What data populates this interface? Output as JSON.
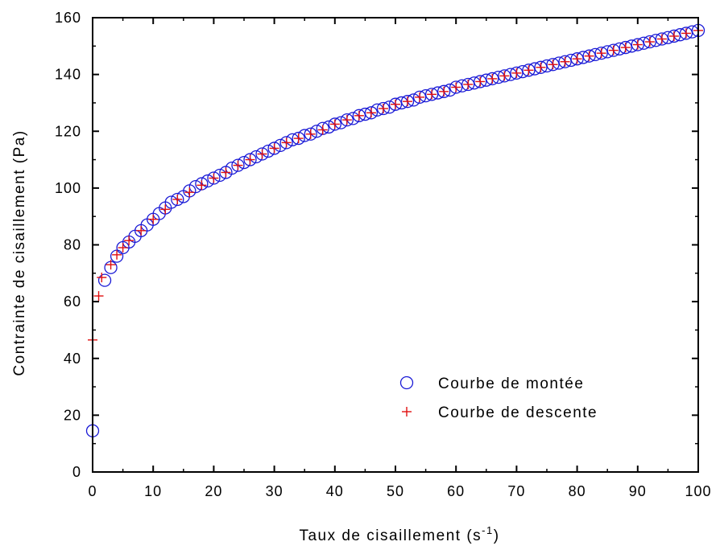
{
  "chart_data": {
    "type": "scatter",
    "title": "",
    "xlabel": "Taux de cisaillement (s",
    "xlabel_sup": "-1",
    "xlabel_end": ")",
    "ylabel": "Contrainte de cisaillement (Pa)",
    "xlim": [
      0,
      100
    ],
    "ylim": [
      0,
      160
    ],
    "x_ticks": [
      "0",
      "10",
      "20",
      "30",
      "40",
      "50",
      "60",
      "70",
      "80",
      "90",
      "100"
    ],
    "y_ticks": [
      "0",
      "20",
      "40",
      "60",
      "80",
      "100",
      "120",
      "140",
      "160"
    ],
    "grid": false,
    "legend_position": "bottom-right",
    "series": [
      {
        "name": "Courbe de montée",
        "marker": "circle-open",
        "color": "#1a1ad6",
        "points": [
          [
            0,
            14.5
          ],
          [
            2,
            67.5
          ],
          [
            3,
            72
          ],
          [
            4,
            76
          ],
          [
            5,
            79
          ],
          [
            6,
            81
          ],
          [
            7,
            83
          ],
          [
            8,
            85
          ],
          [
            9,
            87
          ],
          [
            10,
            89
          ],
          [
            11,
            91
          ],
          [
            12,
            93
          ],
          [
            13,
            95
          ],
          [
            14,
            96
          ],
          [
            15,
            97
          ],
          [
            16,
            99
          ],
          [
            17,
            100.5
          ],
          [
            18,
            101.5
          ],
          [
            19,
            102.5
          ],
          [
            20,
            103.5
          ],
          [
            21,
            104.5
          ],
          [
            22,
            105.5
          ],
          [
            23,
            107
          ],
          [
            24,
            108
          ],
          [
            25,
            109
          ],
          [
            26,
            110
          ],
          [
            27,
            111
          ],
          [
            28,
            112
          ],
          [
            29,
            113
          ],
          [
            30,
            114
          ],
          [
            31,
            115
          ],
          [
            32,
            116
          ],
          [
            33,
            117
          ],
          [
            34,
            117.5
          ],
          [
            35,
            118.5
          ],
          [
            36,
            119
          ],
          [
            37,
            120
          ],
          [
            38,
            121
          ],
          [
            39,
            121.5
          ],
          [
            40,
            122.5
          ],
          [
            41,
            123
          ],
          [
            42,
            124
          ],
          [
            43,
            124.5
          ],
          [
            44,
            125.5
          ],
          [
            45,
            126
          ],
          [
            46,
            126.5
          ],
          [
            47,
            127.5
          ],
          [
            48,
            128
          ],
          [
            49,
            128.5
          ],
          [
            50,
            129.5
          ],
          [
            51,
            130
          ],
          [
            52,
            130.5
          ],
          [
            53,
            131
          ],
          [
            54,
            132
          ],
          [
            55,
            132.5
          ],
          [
            56,
            133
          ],
          [
            57,
            133.5
          ],
          [
            58,
            134
          ],
          [
            59,
            134.5
          ],
          [
            60,
            135.5
          ],
          [
            61,
            136
          ],
          [
            62,
            136.5
          ],
          [
            63,
            137
          ],
          [
            64,
            137.5
          ],
          [
            65,
            138
          ],
          [
            66,
            138.5
          ],
          [
            67,
            139
          ],
          [
            68,
            139.5
          ],
          [
            69,
            140
          ],
          [
            70,
            140.5
          ],
          [
            71,
            141
          ],
          [
            72,
            141.5
          ],
          [
            73,
            142
          ],
          [
            74,
            142.5
          ],
          [
            75,
            143
          ],
          [
            76,
            143.5
          ],
          [
            77,
            144
          ],
          [
            78,
            144.5
          ],
          [
            79,
            145
          ],
          [
            80,
            145.5
          ],
          [
            81,
            146
          ],
          [
            82,
            146.5
          ],
          [
            83,
            147
          ],
          [
            84,
            147.5
          ],
          [
            85,
            148
          ],
          [
            86,
            148.5
          ],
          [
            87,
            149
          ],
          [
            88,
            149.5
          ],
          [
            89,
            150
          ],
          [
            90,
            150.5
          ],
          [
            91,
            151
          ],
          [
            92,
            151.5
          ],
          [
            93,
            152
          ],
          [
            94,
            152.5
          ],
          [
            95,
            153
          ],
          [
            96,
            153.5
          ],
          [
            97,
            154
          ],
          [
            98,
            154.5
          ],
          [
            99,
            155
          ],
          [
            100,
            155.5
          ]
        ]
      },
      {
        "name": "Courbe de descente",
        "marker": "plus",
        "color": "#e01010",
        "points": [
          [
            0,
            46.5
          ],
          [
            1,
            62
          ],
          [
            1.5,
            68.5
          ],
          [
            3,
            73
          ],
          [
            4,
            76.5
          ],
          [
            5,
            79
          ],
          [
            6,
            81.5
          ],
          [
            8,
            85
          ],
          [
            10,
            89
          ],
          [
            12,
            92.5
          ],
          [
            14,
            96
          ],
          [
            16,
            98.5
          ],
          [
            18,
            101
          ],
          [
            20,
            103.5
          ],
          [
            22,
            105.5
          ],
          [
            24,
            108
          ],
          [
            26,
            110
          ],
          [
            28,
            112
          ],
          [
            30,
            114
          ],
          [
            32,
            116
          ],
          [
            34,
            117.5
          ],
          [
            36,
            119
          ],
          [
            38,
            120.5
          ],
          [
            40,
            122.5
          ],
          [
            42,
            124
          ],
          [
            44,
            125.5
          ],
          [
            46,
            126.5
          ],
          [
            48,
            128
          ],
          [
            50,
            129.5
          ],
          [
            52,
            130.5
          ],
          [
            54,
            132
          ],
          [
            56,
            133
          ],
          [
            58,
            134
          ],
          [
            60,
            135.5
          ],
          [
            62,
            136.5
          ],
          [
            64,
            137.5
          ],
          [
            66,
            138.5
          ],
          [
            68,
            139.5
          ],
          [
            70,
            140.5
          ],
          [
            72,
            141.5
          ],
          [
            74,
            142.5
          ],
          [
            76,
            143.5
          ],
          [
            78,
            144.5
          ],
          [
            80,
            145.5
          ],
          [
            82,
            146.5
          ],
          [
            84,
            147.5
          ],
          [
            86,
            148.5
          ],
          [
            88,
            149.5
          ],
          [
            90,
            150.5
          ],
          [
            92,
            151.5
          ],
          [
            94,
            152.5
          ],
          [
            96,
            153.5
          ],
          [
            98,
            154.5
          ],
          [
            100,
            155.5
          ]
        ]
      }
    ]
  }
}
